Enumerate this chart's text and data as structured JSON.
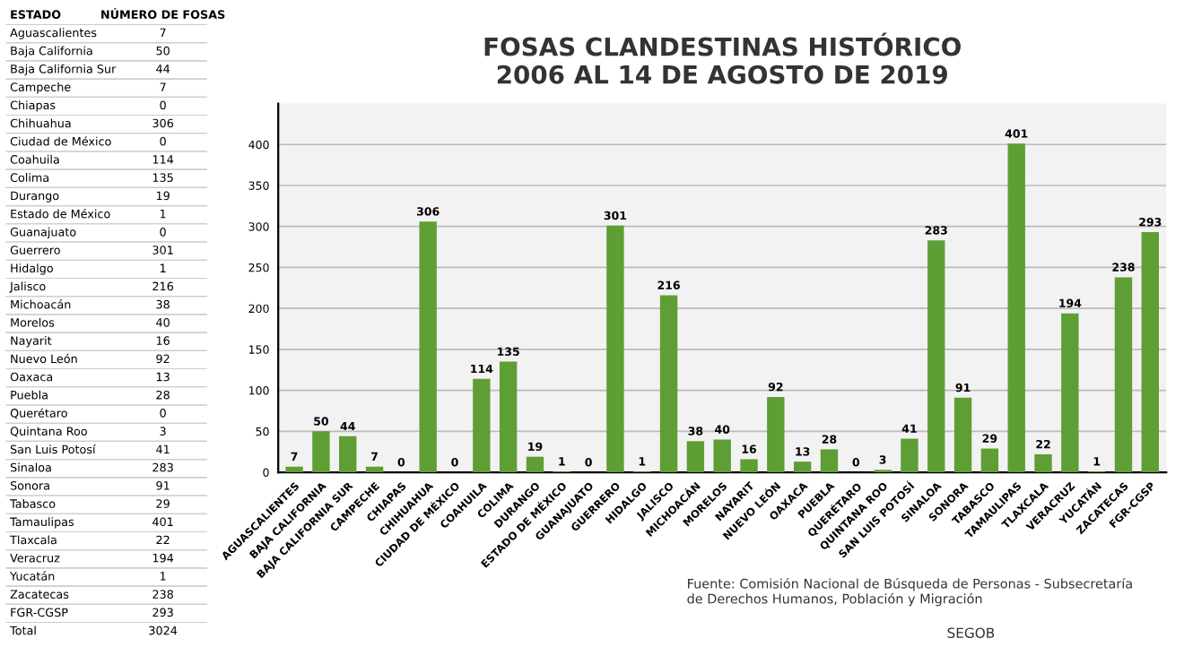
{
  "chart_data": [
    {
      "type": "other",
      "annotations": [
        "ESTADO",
        "NÚMERO DE FOSAS",
        "Aguascalientes",
        "7",
        "Baja California",
        "50",
        "Baja California Sur",
        "44",
        "Campeche",
        "7",
        "Chiapas",
        "0",
        "Chihuahua",
        "306",
        "Ciudad de México",
        "0",
        "Coahuila",
        "114",
        "Colima",
        "135",
        "Durango",
        "19",
        "Estado de México",
        "1",
        "Guanajuato",
        "0",
        "Guerrero",
        "301",
        "Hidalgo",
        "1",
        "Jalisco",
        "216",
        "Michoacán",
        "38",
        "Morelos",
        "40",
        "Nayarit",
        "16",
        "Nuevo León",
        "92",
        "Oaxaca",
        "13",
        "Puebla",
        "28",
        "Querétaro",
        "0",
        "Quintana Roo",
        "3",
        "San Luis Potosí",
        "41",
        "Sinaloa",
        "283",
        "Sonora",
        "91",
        "Tabasco",
        "29",
        "Tamaulipas",
        "401",
        "Tlaxcala",
        "22",
        "Veracruz",
        "194",
        "Yucatán",
        "1",
        "Zacatecas",
        "238",
        "FGR-CGSP",
        "293",
        "Total",
        "3024"
      ]
    },
    {
      "type": "bar",
      "title": "FOSAS CLANDESTINAS HISTÓRICO\n2006 AL 14 DE AGOSTO DE 2019",
      "categories": [
        "AGUASCALIENTES",
        "BAJA CALIFORNIA",
        "BAJA CALIFORNIA SUR",
        "CAMPECHE",
        "CHIAPAS",
        "CHIHUAHUA",
        "CIUDAD DE MÉXICO",
        "COAHUILA",
        "COLIMA",
        "DURANGO",
        "ESTADO DE MÉXICO",
        "GUANAJUATO",
        "GUERRERO",
        "HIDALGO",
        "JALISCO",
        "MICHOACÁN",
        "MORELOS",
        "NAYARIT",
        "NUEVO LEÓN",
        "OAXACA",
        "PUEBLA",
        "QUERÉTARO",
        "QUINTANA ROO",
        "SAN LUIS POTOSÍ",
        "SINALOA",
        "SONORA",
        "TABASCO",
        "TAMAULIPAS",
        "TLAXCALA",
        "VERACRUZ",
        "YUCATÁN",
        "ZACATECAS",
        "FGR-CGSP"
      ],
      "values": [
        7,
        50,
        44,
        7,
        0,
        306,
        0,
        114,
        135,
        19,
        1,
        0,
        301,
        1,
        216,
        38,
        40,
        16,
        92,
        13,
        28,
        0,
        3,
        41,
        283,
        91,
        29,
        401,
        22,
        194,
        1,
        238,
        293
      ],
      "color": "#5e9e34",
      "data_labels": true,
      "ylim": [
        0,
        450
      ],
      "yticks": [
        0,
        50,
        100,
        150,
        200,
        250,
        300,
        350,
        400
      ],
      "grid": "y",
      "annotations": [
        "Fuente: Comisión Nacional de Búsqueda de Personas - Subsecretaría\nde Derechos Humanos, Población y Migración",
        "SEGOB"
      ]
    }
  ]
}
